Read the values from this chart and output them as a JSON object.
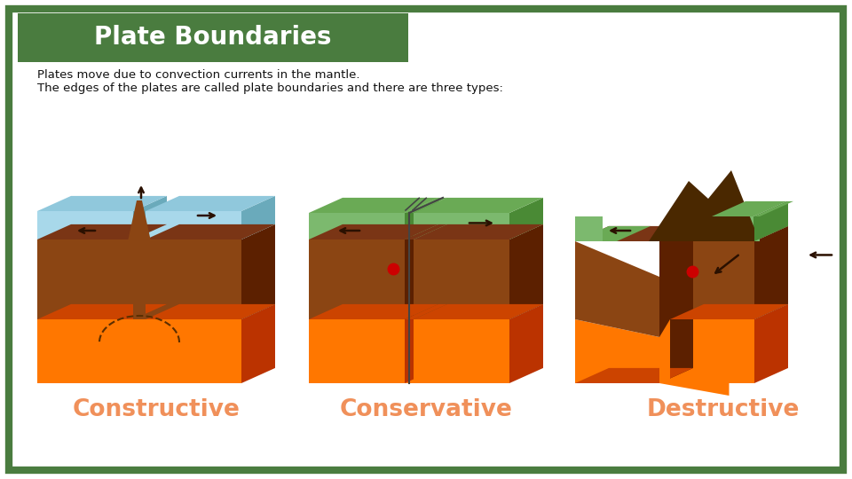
{
  "title": "Plate Boundaries",
  "subtitle_line1": "Plates move due to convection currents in the mantle.",
  "subtitle_line2": "The edges of the plates are called plate boundaries and there are three types:",
  "labels": [
    "Constructive",
    "Conservative",
    "Destructive"
  ],
  "label_color": "#F0905A",
  "title_bg_color": "#4a7c3f",
  "title_text_color": "#ffffff",
  "border_color": "#4a7c3f",
  "bg_color": "#ffffff",
  "orange_light": "#FF7700",
  "orange_dark": "#CC4400",
  "orange_side": "#BB3300",
  "brown_top": "#7A3515",
  "brown_front": "#8B4513",
  "brown_side": "#5C2000",
  "green_top": "#6aaa55",
  "green_front": "#7CB96E",
  "green_side": "#4a8a35",
  "blue_top": "#90C8DC",
  "blue_front": "#A8D8EA",
  "blue_side": "#6aaabb",
  "dark_brown_mountain": "#4A2800",
  "red_dot": "#CC0000",
  "arrow_color": "#2A1000",
  "crack_color": "#444444",
  "arch_color": "#5C2E00"
}
